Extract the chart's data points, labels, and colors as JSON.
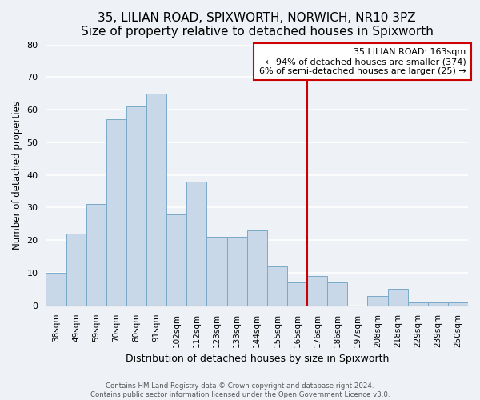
{
  "title": "35, LILIAN ROAD, SPIXWORTH, NORWICH, NR10 3PZ",
  "subtitle": "Size of property relative to detached houses in Spixworth",
  "xlabel": "Distribution of detached houses by size in Spixworth",
  "ylabel": "Number of detached properties",
  "bar_labels": [
    "38sqm",
    "49sqm",
    "59sqm",
    "70sqm",
    "80sqm",
    "91sqm",
    "102sqm",
    "112sqm",
    "123sqm",
    "133sqm",
    "144sqm",
    "155sqm",
    "165sqm",
    "176sqm",
    "186sqm",
    "197sqm",
    "208sqm",
    "218sqm",
    "229sqm",
    "239sqm",
    "250sqm"
  ],
  "bar_values": [
    10,
    22,
    31,
    57,
    61,
    65,
    28,
    38,
    21,
    21,
    23,
    12,
    7,
    9,
    7,
    0,
    3,
    5,
    1,
    1,
    1
  ],
  "bar_color": "#c8d8e8",
  "bar_edge_color": "#7aaac8",
  "ylim": [
    0,
    80
  ],
  "yticks": [
    0,
    10,
    20,
    30,
    40,
    50,
    60,
    70,
    80
  ],
  "vline_x": 12.5,
  "vline_color": "#cc0000",
  "annotation_title": "35 LILIAN ROAD: 163sqm",
  "annotation_line1": "← 94% of detached houses are smaller (374)",
  "annotation_line2": "6% of semi-detached houses are larger (25) →",
  "footer_line1": "Contains HM Land Registry data © Crown copyright and database right 2024.",
  "footer_line2": "Contains public sector information licensed under the Open Government Licence v3.0.",
  "background_color": "#eef2f7",
  "plot_background": "#eef2f7",
  "grid_color": "#ffffff",
  "title_fontsize": 11,
  "subtitle_fontsize": 9.5
}
